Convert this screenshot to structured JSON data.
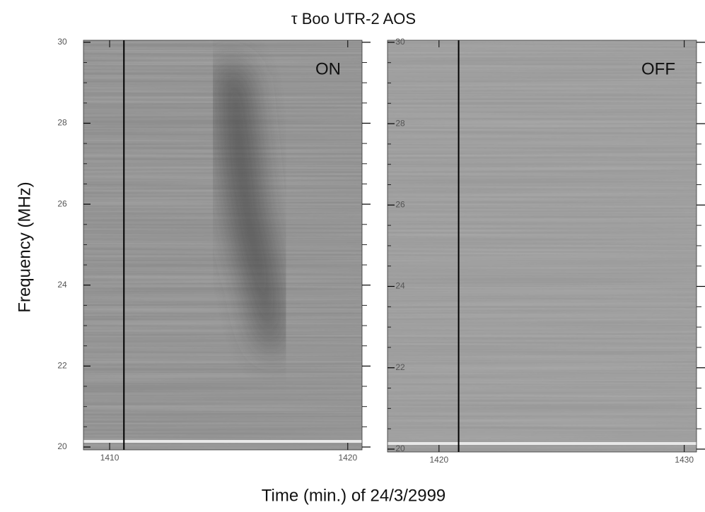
{
  "figure": {
    "title": "τ Boo   UTR-2   AOS",
    "xlabel": "Time (min.) of 24/3/2999",
    "ylabel": "Frequency (MHz)"
  },
  "chart_data": [
    {
      "type": "heatmap",
      "annotation": "ON",
      "xlim": [
        1408.9,
        1420.6
      ],
      "xticks": [
        1410,
        1420
      ],
      "ylim": [
        19.93,
        30.05
      ],
      "yticks": [
        20,
        22,
        24,
        26,
        28,
        30
      ],
      "vline": 1410.6,
      "cmap": "gray"
    },
    {
      "type": "heatmap",
      "annotation": "OFF",
      "xlim": [
        1417.9,
        1430.5
      ],
      "xticks": [
        1420,
        1430
      ],
      "ylim": [
        19.93,
        30.05
      ],
      "yticks": [
        20,
        22,
        24,
        26,
        28,
        30
      ],
      "vline": 1420.8,
      "cmap": "gray"
    }
  ]
}
